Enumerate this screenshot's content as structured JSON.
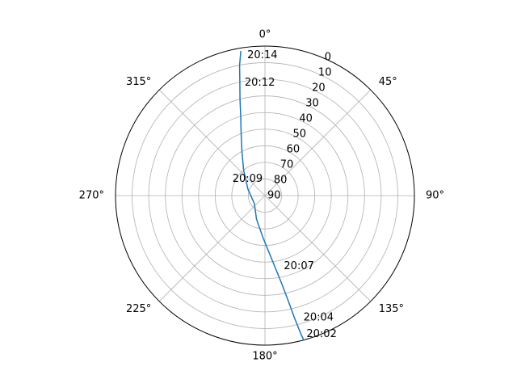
{
  "chart_data": {
    "type": "line",
    "subtype": "polar",
    "theta_zero": "north",
    "theta_direction": "clockwise",
    "grid": true,
    "r_axis": {
      "label_angle_deg": 22.5,
      "ticks": [
        {
          "value": 0,
          "label": "0"
        },
        {
          "value": 10,
          "label": "10"
        },
        {
          "value": 20,
          "label": "20"
        },
        {
          "value": 30,
          "label": "30"
        },
        {
          "value": 40,
          "label": "40"
        },
        {
          "value": 50,
          "label": "50"
        },
        {
          "value": 60,
          "label": "60"
        },
        {
          "value": 70,
          "label": "70"
        },
        {
          "value": 80,
          "label": "80"
        },
        {
          "value": 90,
          "label": "90"
        }
      ]
    },
    "theta_ticks": [
      {
        "value": 0,
        "label": "0°"
      },
      {
        "value": 45,
        "label": "45°"
      },
      {
        "value": 90,
        "label": "90°"
      },
      {
        "value": 135,
        "label": "135°"
      },
      {
        "value": 180,
        "label": "180°"
      },
      {
        "value": 225,
        "label": "225°"
      },
      {
        "value": 270,
        "label": "270°"
      },
      {
        "value": 315,
        "label": "315°"
      }
    ],
    "series": [
      {
        "color": "#1f77b4",
        "points": [
          {
            "azimuth": 165.0,
            "elevation": 0
          },
          {
            "azimuth": 165.5,
            "elevation": 5
          },
          {
            "azimuth": 166.5,
            "elevation": 15
          },
          {
            "azimuth": 167.5,
            "elevation": 25
          },
          {
            "azimuth": 169.0,
            "elevation": 35
          },
          {
            "azimuth": 171.5,
            "elevation": 45
          },
          {
            "azimuth": 175.5,
            "elevation": 55
          },
          {
            "azimuth": 183.0,
            "elevation": 65
          },
          {
            "azimuth": 200.0,
            "elevation": 75
          },
          {
            "azimuth": 233.0,
            "elevation": 82
          },
          {
            "azimuth": 291.0,
            "elevation": 79
          },
          {
            "azimuth": 320.0,
            "elevation": 70
          },
          {
            "azimuth": 332.5,
            "elevation": 60
          },
          {
            "azimuth": 339.0,
            "elevation": 50
          },
          {
            "azimuth": 343.0,
            "elevation": 40
          },
          {
            "azimuth": 345.5,
            "elevation": 30
          },
          {
            "azimuth": 347.5,
            "elevation": 20
          },
          {
            "azimuth": 349.0,
            "elevation": 10
          },
          {
            "azimuth": 350.5,
            "elevation": 2
          }
        ]
      }
    ],
    "annotations": [
      {
        "text": "20:02",
        "azimuth": 163.3,
        "elevation": 3
      },
      {
        "text": "20:04",
        "azimuth": 162.5,
        "elevation": 13
      },
      {
        "text": "20:07",
        "azimuth": 165.0,
        "elevation": 46
      },
      {
        "text": "20:09",
        "azimuth": 297.0,
        "elevation": 68
      },
      {
        "text": "20:12",
        "azimuth": 349.8,
        "elevation": 21
      },
      {
        "text": "20:14",
        "azimuth": 352.8,
        "elevation": 5
      }
    ]
  }
}
